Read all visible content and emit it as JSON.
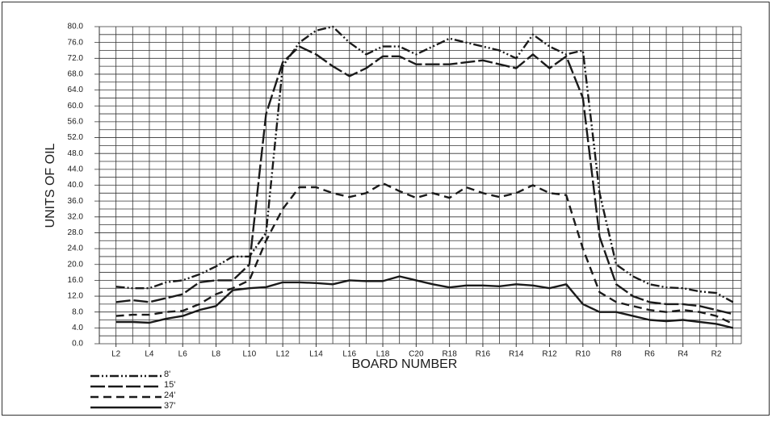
{
  "chart_data": {
    "type": "line",
    "x_label": "BOARD NUMBER",
    "y_label": "UNITS OF OIL",
    "categories": [
      null,
      "L2",
      null,
      "L4",
      null,
      "L6",
      null,
      "L8",
      null,
      "L10",
      null,
      "L12",
      null,
      "L14",
      null,
      "L16",
      null,
      "L18",
      null,
      "C20",
      null,
      "R18",
      null,
      "R16",
      null,
      "R14",
      null,
      "R12",
      null,
      "R10",
      null,
      "R8",
      null,
      "R6",
      null,
      "R4",
      null,
      "R2",
      null
    ],
    "series": [
      {
        "name": "8'",
        "color": "#1a1a1a",
        "dash": "dash-dot-dot",
        "values": [
          null,
          14.4,
          14,
          14,
          15.5,
          16,
          17.5,
          19.5,
          22,
          22,
          28,
          70,
          76,
          79,
          80,
          76,
          73,
          75,
          75,
          73,
          75,
          77,
          76,
          75,
          74,
          72,
          78,
          75,
          73,
          74,
          38,
          20,
          17,
          15,
          14.2,
          14,
          13.2,
          12.8,
          10.5
        ]
      },
      {
        "name": "15'",
        "color": "#1a1a1a",
        "dash": "long-dash",
        "values": [
          null,
          10.5,
          11,
          10.5,
          11.5,
          12.5,
          15.5,
          16,
          16,
          20,
          58,
          71,
          75,
          73,
          70,
          67.5,
          69.5,
          72.5,
          72.5,
          70.5,
          70.5,
          70.5,
          71,
          71.5,
          70.5,
          69.5,
          73,
          69.5,
          72.5,
          62,
          27,
          15,
          12,
          10.5,
          10,
          10,
          9.5,
          8.5,
          7.5
        ]
      },
      {
        "name": "24'",
        "color": "#1a1a1a",
        "dash": "dash",
        "values": [
          null,
          7,
          7.3,
          7.3,
          8,
          8.3,
          10,
          12.5,
          14,
          16,
          26,
          34,
          39.5,
          39.5,
          38,
          37,
          38,
          40.5,
          38.5,
          36.8,
          38,
          36.8,
          39.5,
          38,
          37,
          38,
          40,
          38,
          37.5,
          24,
          13,
          10.5,
          9.5,
          8.5,
          8,
          8.5,
          8,
          7,
          5
        ]
      },
      {
        "name": "37'",
        "color": "#1a1a1a",
        "dash": "solid",
        "values": [
          null,
          5.5,
          5.5,
          5.3,
          6.3,
          7,
          8.5,
          9.5,
          13.5,
          14,
          14.3,
          15.5,
          15.5,
          15.3,
          15,
          16,
          15.8,
          15.8,
          17,
          16,
          15,
          14.2,
          14.7,
          14.7,
          14.5,
          15,
          14.7,
          14,
          15,
          10,
          8,
          8,
          7,
          6,
          5.7,
          6,
          5.5,
          5,
          4
        ]
      }
    ],
    "ylim": [
      0,
      80
    ],
    "yticks": [
      {
        "value": 0,
        "label": "0.0"
      },
      {
        "value": 4,
        "label": "4.0"
      },
      {
        "value": 8,
        "label": "8.0"
      },
      {
        "value": 12,
        "label": "12.0"
      },
      {
        "value": 16,
        "label": "16.0"
      },
      {
        "value": 20,
        "label": "20.0"
      },
      {
        "value": 24,
        "label": "24.0"
      },
      {
        "value": 28,
        "label": "28.0"
      },
      {
        "value": 32,
        "label": "32.0"
      },
      {
        "value": 36,
        "label": "36.0"
      },
      {
        "value": 40,
        "label": "40.0"
      },
      {
        "value": 44,
        "label": "44.0"
      },
      {
        "value": 48,
        "label": "48.0"
      },
      {
        "value": 52,
        "label": "52.0"
      },
      {
        "value": 56,
        "label": "56.0"
      },
      {
        "value": 60,
        "label": "60.0"
      },
      {
        "value": 64,
        "label": "64.0"
      },
      {
        "value": 68,
        "label": "68.0"
      },
      {
        "value": 72,
        "label": "72.0"
      },
      {
        "value": 76,
        "label": "76.0"
      },
      {
        "value": 80,
        "label": "80.0"
      }
    ],
    "minor_yticks": [
      2,
      6,
      10,
      14,
      18,
      22,
      26,
      30,
      34,
      38,
      42,
      46,
      50,
      54,
      58,
      62,
      66,
      70,
      74,
      78
    ],
    "grid": true,
    "legend": "bottom-left"
  }
}
